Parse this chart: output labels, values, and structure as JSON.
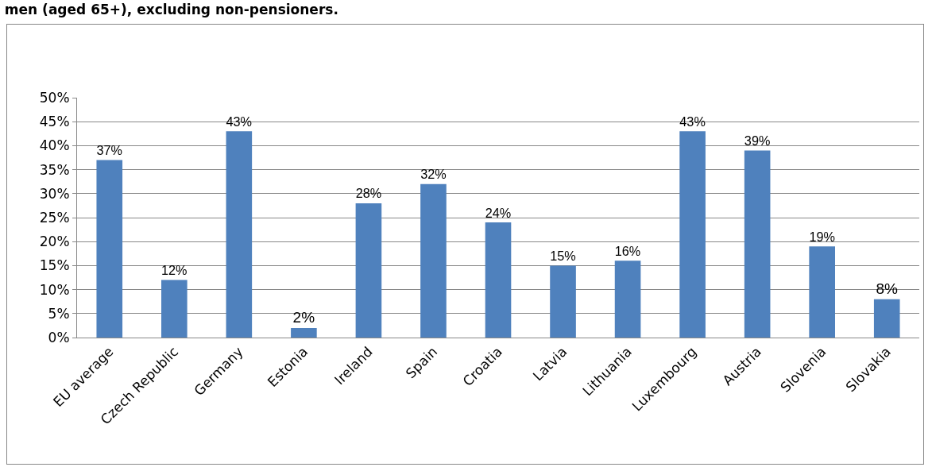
{
  "chart_data": {
    "type": "bar",
    "title": "men (aged 65+), excluding non-pensioners.",
    "categories": [
      "EU average",
      "Czech Republic",
      "Germany",
      "Estonia",
      "Ireland",
      "Spain",
      "Croatia",
      "Latvia",
      "Lithuania",
      "Luxembourg",
      "Austria",
      "Slovenia",
      "Slovakia"
    ],
    "values": [
      37,
      12,
      43,
      2,
      28,
      32,
      24,
      15,
      16,
      43,
      39,
      19,
      8
    ],
    "color": "#4f81bd",
    "ylim": [
      0,
      50
    ],
    "yticks": [
      {
        "value": 0,
        "label": "0%"
      },
      {
        "value": 5,
        "label": "5%"
      },
      {
        "value": 10,
        "label": "10%"
      },
      {
        "value": 15,
        "label": "15%"
      },
      {
        "value": 20,
        "label": "20%"
      },
      {
        "value": 25,
        "label": "25%"
      },
      {
        "value": 30,
        "label": "30%"
      },
      {
        "value": 35,
        "label": "35%"
      },
      {
        "value": 40,
        "label": "40%"
      },
      {
        "value": 45,
        "label": "45%"
      },
      {
        "value": 50,
        "label": "50%"
      }
    ],
    "value_labels": [
      "37%",
      "12%",
      "43%",
      "2%",
      "28%",
      "32%",
      "24%",
      "15%",
      "16%",
      "43%",
      "39%",
      "19%",
      "8%"
    ],
    "grid": "y"
  }
}
